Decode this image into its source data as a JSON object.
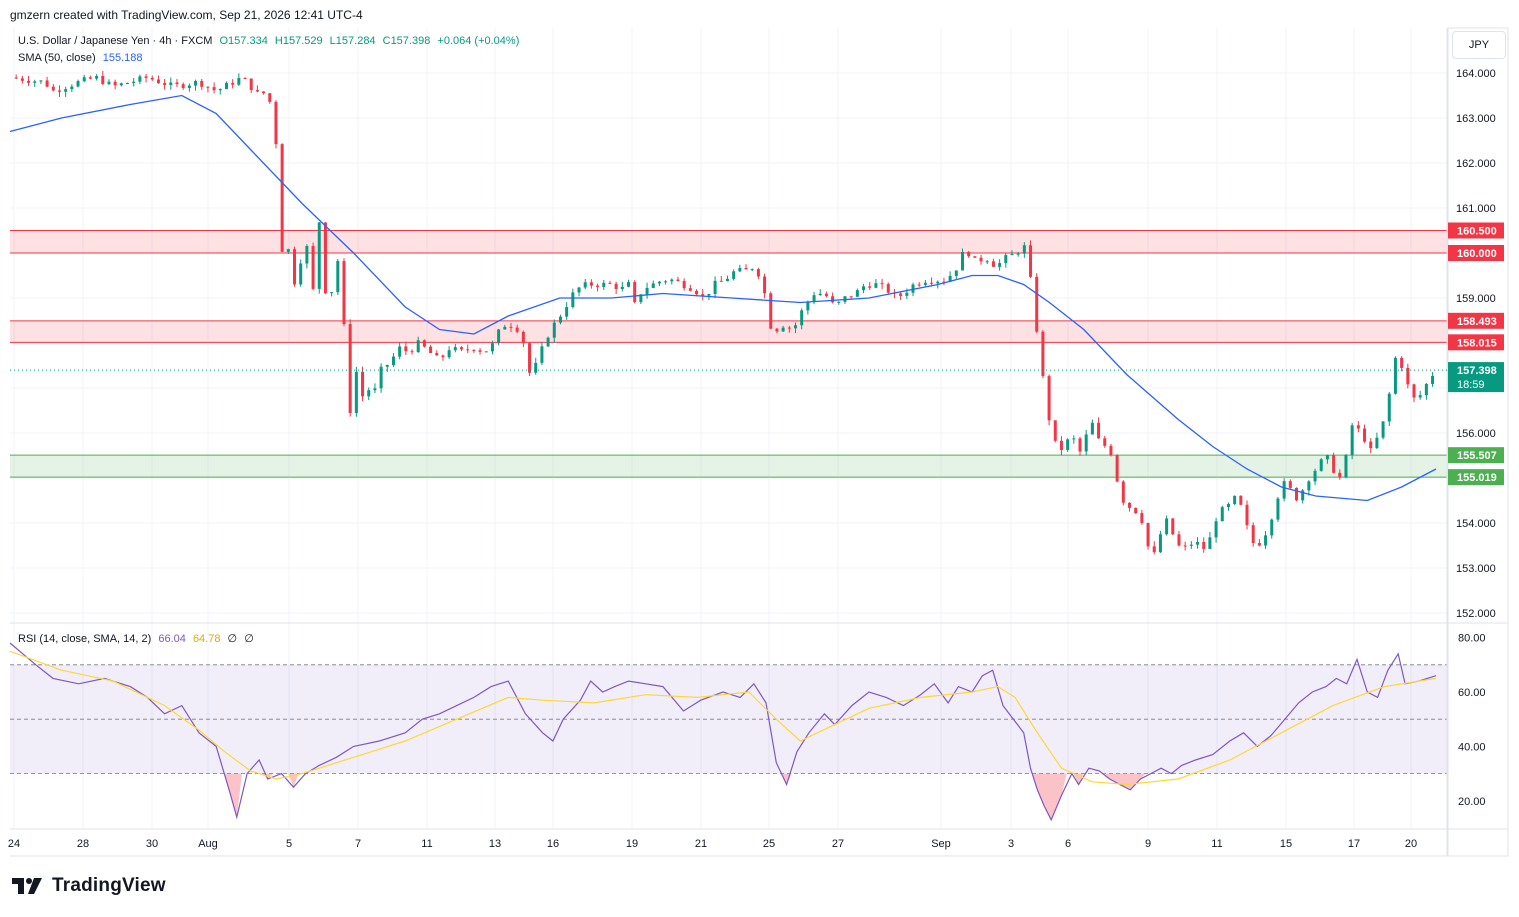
{
  "attribution": "gmzern created with TradingView.com, Sep 21, 2026 12:41 UTC-4",
  "legend": {
    "symbol": "U.S. Dollar / Japanese Yen · 4h · FXCM",
    "open": "O157.334",
    "high": "H157.529",
    "low": "L157.284",
    "close": "C157.398",
    "change": "+0.064 (+0.04%)",
    "sma_label": "SMA (50, close)",
    "sma_value": "155.188",
    "rsi_label": "RSI (14, close, SMA, 14, 2)",
    "rsi_value": "66.04",
    "rsi_sma_value": "64.78",
    "rsi_empty1": "∅",
    "rsi_empty2": "∅"
  },
  "currency": "JPY",
  "logo_text": "TradingView",
  "colors": {
    "up": "#089981",
    "down": "#f23645",
    "sma": "#2962ff",
    "rsi": "#7e57c2",
    "rsi_sma": "#fdd835",
    "resistance_zone": "#f23645",
    "support_zone": "#4caf50",
    "price_tag": "#089981"
  },
  "chart_data": {
    "type": "candlestick",
    "price_axis": {
      "range": [
        151.8,
        165.0
      ],
      "ticks": [
        "164.000",
        "163.000",
        "162.000",
        "161.000",
        "160.000",
        "159.000",
        "158.000",
        "157.000",
        "156.000",
        "155.000",
        "154.000",
        "153.000",
        "152.000"
      ]
    },
    "x_ticks": [
      "24",
      "28",
      "30",
      "Aug",
      "5",
      "7",
      "11",
      "13",
      "16",
      "19",
      "21",
      "25",
      "27",
      "Sep",
      "3",
      "6",
      "9",
      "11",
      "15",
      "17",
      "20"
    ],
    "zones": [
      {
        "type": "resistance",
        "top": 160.5,
        "bottom": 160.0,
        "labels": [
          "160.500",
          "160.000"
        ]
      },
      {
        "type": "resistance",
        "top": 158.493,
        "bottom": 158.015,
        "labels": [
          "158.493",
          "158.015"
        ]
      },
      {
        "type": "support",
        "top": 155.507,
        "bottom": 155.019,
        "labels": [
          "155.507",
          "155.019"
        ]
      }
    ],
    "last_price": {
      "value": 157.398,
      "label": "157.398",
      "countdown": "18:59"
    },
    "price_path": [
      [
        0,
        163.9
      ],
      [
        20,
        163.8
      ],
      [
        25,
        163.6
      ],
      [
        40,
        163.8
      ],
      [
        50,
        163.9
      ],
      [
        60,
        163.7
      ],
      [
        70,
        163.8
      ],
      [
        80,
        163.9
      ],
      [
        95,
        163.7
      ],
      [
        110,
        163.8
      ],
      [
        120,
        163.6
      ],
      [
        130,
        163.8
      ],
      [
        135,
        163.9
      ],
      [
        145,
        163.5
      ],
      [
        150,
        163.6
      ],
      [
        153,
        163.0
      ],
      [
        155,
        162.4
      ],
      [
        158,
        160.5
      ],
      [
        160,
        158.4
      ],
      [
        163,
        160.9
      ],
      [
        165,
        159.3
      ],
      [
        168,
        159.6
      ],
      [
        172,
        160.4
      ],
      [
        176,
        159.0
      ],
      [
        180,
        160.7
      ],
      [
        184,
        159.0
      ],
      [
        188,
        159.2
      ],
      [
        192,
        160.1
      ],
      [
        196,
        157.2
      ],
      [
        198,
        156.5
      ],
      [
        200,
        157.8
      ],
      [
        204,
        156.7
      ],
      [
        207,
        157.0
      ],
      [
        212,
        156.9
      ],
      [
        216,
        157.4
      ],
      [
        222,
        157.6
      ],
      [
        226,
        157.9
      ],
      [
        232,
        157.8
      ],
      [
        238,
        158.0
      ],
      [
        244,
        157.8
      ],
      [
        250,
        157.6
      ],
      [
        256,
        157.9
      ],
      [
        262,
        157.8
      ],
      [
        270,
        157.9
      ],
      [
        276,
        157.8
      ],
      [
        282,
        158.0
      ],
      [
        286,
        158.4
      ],
      [
        292,
        158.4
      ],
      [
        296,
        158.3
      ],
      [
        300,
        157.9
      ],
      [
        303,
        157.2
      ],
      [
        306,
        157.5
      ],
      [
        312,
        158.1
      ],
      [
        318,
        158.5
      ],
      [
        322,
        158.7
      ],
      [
        326,
        159.0
      ],
      [
        330,
        159.2
      ],
      [
        336,
        159.3
      ],
      [
        342,
        159.3
      ],
      [
        350,
        159.3
      ],
      [
        356,
        159.2
      ],
      [
        360,
        159.3
      ],
      [
        364,
        158.8
      ],
      [
        368,
        159.2
      ],
      [
        374,
        159.3
      ],
      [
        380,
        159.4
      ],
      [
        386,
        159.4
      ],
      [
        392,
        159.3
      ],
      [
        398,
        159.2
      ],
      [
        404,
        159.0
      ],
      [
        410,
        159.3
      ],
      [
        416,
        159.4
      ],
      [
        422,
        159.6
      ],
      [
        428,
        159.6
      ],
      [
        433,
        159.7
      ],
      [
        438,
        159.4
      ],
      [
        442,
        158.4
      ],
      [
        446,
        158.3
      ],
      [
        450,
        158.4
      ],
      [
        456,
        158.3
      ],
      [
        462,
        158.8
      ],
      [
        468,
        159.1
      ],
      [
        474,
        159.1
      ],
      [
        480,
        158.8
      ],
      [
        486,
        159.0
      ],
      [
        492,
        159.1
      ],
      [
        498,
        159.3
      ],
      [
        504,
        159.3
      ],
      [
        510,
        159.2
      ],
      [
        516,
        159.0
      ],
      [
        520,
        159.1
      ],
      [
        526,
        159.3
      ],
      [
        532,
        159.4
      ],
      [
        538,
        159.4
      ],
      [
        544,
        159.4
      ],
      [
        550,
        159.6
      ],
      [
        556,
        160.1
      ],
      [
        562,
        159.8
      ],
      [
        568,
        159.9
      ],
      [
        574,
        159.7
      ],
      [
        580,
        159.9
      ],
      [
        586,
        160.0
      ],
      [
        590,
        160.2
      ],
      [
        593,
        159.7
      ],
      [
        597,
        158.5
      ],
      [
        600,
        157.5
      ],
      [
        603,
        156.8
      ],
      [
        606,
        156.0
      ],
      [
        610,
        155.6
      ],
      [
        614,
        155.7
      ],
      [
        618,
        156.0
      ],
      [
        622,
        155.5
      ],
      [
        626,
        155.9
      ],
      [
        630,
        156.2
      ],
      [
        634,
        155.8
      ],
      [
        638,
        155.7
      ],
      [
        642,
        155.5
      ],
      [
        646,
        154.6
      ],
      [
        650,
        154.4
      ],
      [
        654,
        154.3
      ],
      [
        658,
        154.2
      ],
      [
        662,
        153.5
      ],
      [
        666,
        153.3
      ],
      [
        670,
        153.8
      ],
      [
        674,
        154.1
      ],
      [
        678,
        153.6
      ],
      [
        682,
        153.4
      ],
      [
        686,
        153.5
      ],
      [
        690,
        153.6
      ],
      [
        694,
        153.4
      ],
      [
        698,
        153.6
      ],
      [
        702,
        154.1
      ],
      [
        706,
        154.3
      ],
      [
        710,
        154.4
      ],
      [
        714,
        154.6
      ],
      [
        718,
        154.2
      ],
      [
        722,
        153.6
      ],
      [
        726,
        153.5
      ],
      [
        730,
        153.7
      ],
      [
        734,
        154.1
      ],
      [
        738,
        154.6
      ],
      [
        742,
        154.9
      ],
      [
        746,
        154.7
      ],
      [
        750,
        154.5
      ],
      [
        754,
        154.9
      ],
      [
        758,
        155.1
      ],
      [
        762,
        155.3
      ],
      [
        766,
        155.5
      ],
      [
        770,
        155.2
      ],
      [
        774,
        155.0
      ],
      [
        778,
        155.5
      ],
      [
        780,
        156.2
      ],
      [
        784,
        156.1
      ],
      [
        788,
        155.9
      ],
      [
        792,
        155.6
      ],
      [
        796,
        155.9
      ],
      [
        800,
        156.3
      ],
      [
        804,
        157.1
      ],
      [
        806,
        157.6
      ],
      [
        808,
        157.9
      ],
      [
        810,
        157.5
      ],
      [
        814,
        157.0
      ],
      [
        818,
        156.7
      ],
      [
        822,
        156.9
      ],
      [
        826,
        157.2
      ],
      [
        830,
        157.4
      ]
    ],
    "sma_path": [
      [
        0,
        162.7
      ],
      [
        30,
        163.0
      ],
      [
        70,
        163.3
      ],
      [
        100,
        163.5
      ],
      [
        120,
        163.1
      ],
      [
        140,
        162.3
      ],
      [
        170,
        161.1
      ],
      [
        200,
        160.0
      ],
      [
        230,
        158.8
      ],
      [
        250,
        158.3
      ],
      [
        270,
        158.2
      ],
      [
        290,
        158.6
      ],
      [
        320,
        159.0
      ],
      [
        350,
        159.0
      ],
      [
        380,
        159.1
      ],
      [
        420,
        159.0
      ],
      [
        460,
        158.9
      ],
      [
        500,
        159.0
      ],
      [
        540,
        159.3
      ],
      [
        560,
        159.5
      ],
      [
        575,
        159.5
      ],
      [
        590,
        159.3
      ],
      [
        605,
        158.9
      ],
      [
        625,
        158.3
      ],
      [
        650,
        157.3
      ],
      [
        680,
        156.3
      ],
      [
        700,
        155.7
      ],
      [
        720,
        155.2
      ],
      [
        740,
        154.8
      ],
      [
        760,
        154.6
      ],
      [
        790,
        154.5
      ],
      [
        810,
        154.8
      ],
      [
        830,
        155.2
      ]
    ],
    "rsi_range": [
      10,
      85
    ],
    "rsi_ticks": [
      "80.00",
      "60.00",
      "40.00",
      "20.00"
    ],
    "rsi_bands": {
      "upper": 70,
      "middle": 50,
      "lower": 30
    },
    "rsi_path": [
      [
        0,
        78
      ],
      [
        15,
        70
      ],
      [
        25,
        65
      ],
      [
        40,
        63
      ],
      [
        55,
        65
      ],
      [
        70,
        62
      ],
      [
        80,
        58
      ],
      [
        90,
        52
      ],
      [
        100,
        55
      ],
      [
        110,
        45
      ],
      [
        120,
        40
      ],
      [
        128,
        23
      ],
      [
        132,
        14
      ],
      [
        138,
        30
      ],
      [
        145,
        35
      ],
      [
        150,
        28
      ],
      [
        158,
        30
      ],
      [
        165,
        25
      ],
      [
        172,
        30
      ],
      [
        180,
        33
      ],
      [
        190,
        36
      ],
      [
        200,
        40
      ],
      [
        215,
        42
      ],
      [
        230,
        45
      ],
      [
        240,
        50
      ],
      [
        250,
        52
      ],
      [
        260,
        55
      ],
      [
        270,
        58
      ],
      [
        280,
        62
      ],
      [
        290,
        64
      ],
      [
        300,
        52
      ],
      [
        310,
        45
      ],
      [
        316,
        42
      ],
      [
        322,
        50
      ],
      [
        332,
        57
      ],
      [
        338,
        64
      ],
      [
        345,
        60
      ],
      [
        352,
        62
      ],
      [
        360,
        64
      ],
      [
        370,
        63
      ],
      [
        380,
        62
      ],
      [
        392,
        53
      ],
      [
        402,
        57
      ],
      [
        415,
        60
      ],
      [
        425,
        58
      ],
      [
        433,
        63
      ],
      [
        440,
        56
      ],
      [
        446,
        34
      ],
      [
        452,
        26
      ],
      [
        458,
        38
      ],
      [
        465,
        45
      ],
      [
        474,
        52
      ],
      [
        480,
        48
      ],
      [
        490,
        55
      ],
      [
        500,
        60
      ],
      [
        510,
        58
      ],
      [
        520,
        55
      ],
      [
        530,
        59
      ],
      [
        538,
        63
      ],
      [
        546,
        56
      ],
      [
        552,
        62
      ],
      [
        560,
        60
      ],
      [
        566,
        66
      ],
      [
        572,
        68
      ],
      [
        578,
        55
      ],
      [
        584,
        50
      ],
      [
        590,
        45
      ],
      [
        594,
        32
      ],
      [
        598,
        24
      ],
      [
        602,
        18
      ],
      [
        606,
        13
      ],
      [
        612,
        22
      ],
      [
        618,
        30
      ],
      [
        622,
        26
      ],
      [
        628,
        32
      ],
      [
        634,
        31
      ],
      [
        640,
        28
      ],
      [
        646,
        26
      ],
      [
        652,
        24
      ],
      [
        658,
        28
      ],
      [
        664,
        30
      ],
      [
        670,
        32
      ],
      [
        676,
        30
      ],
      [
        682,
        33
      ],
      [
        690,
        35
      ],
      [
        700,
        37
      ],
      [
        710,
        42
      ],
      [
        718,
        45
      ],
      [
        726,
        40
      ],
      [
        734,
        44
      ],
      [
        742,
        50
      ],
      [
        750,
        56
      ],
      [
        758,
        60
      ],
      [
        766,
        62
      ],
      [
        772,
        65
      ],
      [
        778,
        63
      ],
      [
        784,
        72
      ],
      [
        790,
        60
      ],
      [
        796,
        58
      ],
      [
        802,
        68
      ],
      [
        808,
        74
      ],
      [
        812,
        63
      ],
      [
        820,
        64
      ],
      [
        830,
        66
      ]
    ],
    "rsi_sma_path": [
      [
        0,
        75
      ],
      [
        30,
        68
      ],
      [
        60,
        64
      ],
      [
        90,
        55
      ],
      [
        110,
        46
      ],
      [
        125,
        38
      ],
      [
        140,
        31
      ],
      [
        155,
        28
      ],
      [
        170,
        30
      ],
      [
        200,
        36
      ],
      [
        230,
        42
      ],
      [
        260,
        50
      ],
      [
        290,
        58
      ],
      [
        310,
        57
      ],
      [
        340,
        56
      ],
      [
        370,
        59
      ],
      [
        400,
        58
      ],
      [
        430,
        60
      ],
      [
        446,
        50
      ],
      [
        460,
        42
      ],
      [
        480,
        48
      ],
      [
        500,
        54
      ],
      [
        530,
        58
      ],
      [
        560,
        60
      ],
      [
        575,
        62
      ],
      [
        585,
        58
      ],
      [
        598,
        45
      ],
      [
        612,
        32
      ],
      [
        630,
        27
      ],
      [
        650,
        26
      ],
      [
        680,
        28
      ],
      [
        710,
        35
      ],
      [
        740,
        45
      ],
      [
        770,
        55
      ],
      [
        800,
        62
      ],
      [
        830,
        65
      ]
    ]
  }
}
